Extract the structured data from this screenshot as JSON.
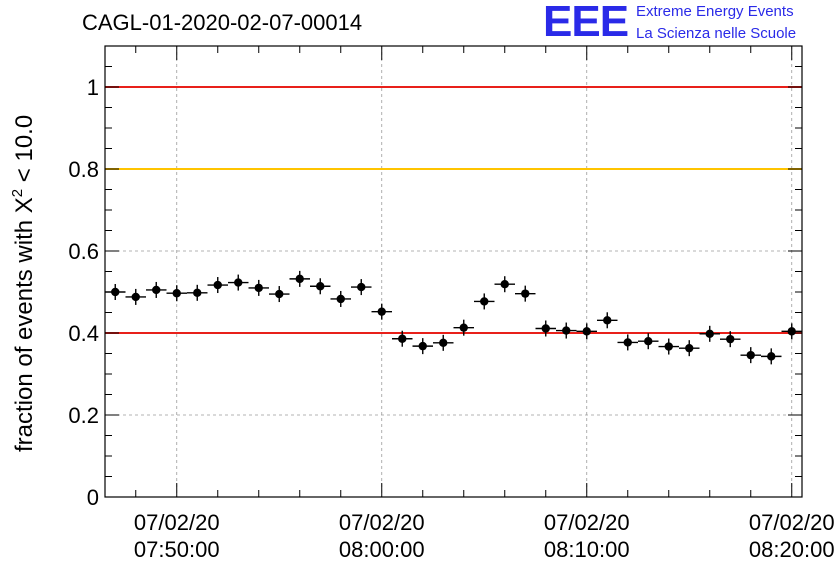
{
  "title": "CAGL-01-2020-02-07-00014",
  "logo": {
    "mark": "EEE",
    "line1": "Extreme Energy Events",
    "line2": "La Scienza nelle Scuole"
  },
  "colors": {
    "red_line": "#e8201a",
    "yellow_line": "#ffc400",
    "logo_blue": "#2a2ae8",
    "marker": "#000000"
  },
  "chart_data": {
    "type": "scatter",
    "ylabel": "fraction of events with X² < 10.0",
    "ylabel_main": "fraction of events with X",
    "ylabel_sup": "2",
    "ylabel_tail": " < 10.0",
    "ylim": [
      0,
      1.1
    ],
    "xlim": [
      "07/02/20 07:46:30",
      "08:20:30"
    ],
    "yticks": [
      0,
      0.2,
      0.4,
      0.6,
      0.8,
      1
    ],
    "ytick_labels": [
      "0",
      "0.2",
      "0.4",
      "0.6",
      "0.8",
      "1"
    ],
    "xticks": [
      {
        "minute": 50,
        "date": "07/02/20",
        "time": "07:50:00"
      },
      {
        "minute": 60,
        "date": "07/02/20",
        "time": "08:00:00"
      },
      {
        "minute": 70,
        "date": "07/02/20",
        "time": "08:10:00"
      },
      {
        "minute": 80,
        "date": "07/02/20",
        "time": "08:20:00"
      }
    ],
    "grid": true,
    "reference_lines": [
      {
        "y": 1.0,
        "color": "#e8201a"
      },
      {
        "y": 0.8,
        "color": "#ffc400"
      },
      {
        "y": 0.4,
        "color": "#e8201a"
      }
    ],
    "series": [
      {
        "x_minutes_after_07_00": [
          47,
          48,
          49,
          50,
          51,
          52,
          53,
          54,
          55,
          56,
          57,
          58,
          59,
          60,
          61,
          62,
          63,
          64,
          65,
          66,
          67,
          68,
          69,
          70,
          71,
          72,
          73,
          74,
          75,
          76,
          77,
          78,
          79,
          80
        ],
        "x_times": [
          "07:47",
          "07:48",
          "07:49",
          "07:50",
          "07:51",
          "07:52",
          "07:53",
          "07:54",
          "07:55",
          "07:56",
          "07:57",
          "07:58",
          "07:59",
          "08:00",
          "08:01",
          "08:02",
          "08:03",
          "08:04",
          "08:05",
          "08:06",
          "08:07",
          "08:08",
          "08:09",
          "08:10",
          "08:11",
          "08:12",
          "08:13",
          "08:14",
          "08:15",
          "08:16",
          "08:17",
          "08:18",
          "08:19",
          "08:20"
        ],
        "values": [
          0.5,
          0.488,
          0.505,
          0.497,
          0.498,
          0.517,
          0.523,
          0.51,
          0.495,
          0.532,
          0.514,
          0.483,
          0.512,
          0.452,
          0.386,
          0.368,
          0.376,
          0.413,
          0.477,
          0.519,
          0.496,
          0.411,
          0.406,
          0.404,
          0.431,
          0.377,
          0.38,
          0.367,
          0.363,
          0.398,
          0.385,
          0.346,
          0.343,
          0.404
        ]
      }
    ]
  }
}
